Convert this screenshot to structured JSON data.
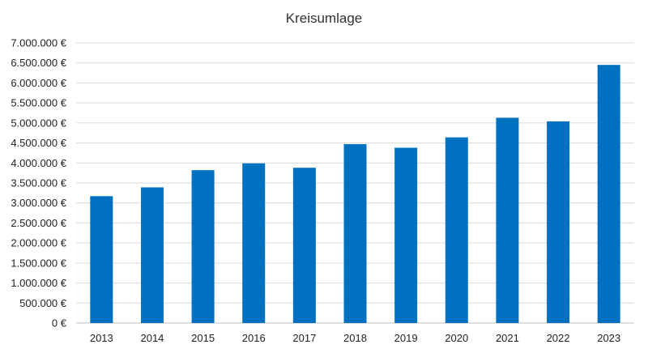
{
  "chart_data": {
    "type": "bar",
    "title": "Kreisumlage",
    "xlabel": "",
    "ylabel": "",
    "categories": [
      "2013",
      "2014",
      "2015",
      "2016",
      "2017",
      "2018",
      "2019",
      "2020",
      "2021",
      "2022",
      "2023"
    ],
    "values": [
      3170000,
      3390000,
      3820000,
      3990000,
      3880000,
      4470000,
      4380000,
      4640000,
      5130000,
      5040000,
      6450000
    ],
    "ylim": [
      0,
      7000000
    ],
    "ytick_step": 500000,
    "ytick_labels": [
      "0 €",
      "500.000 €",
      "1.000.000 €",
      "1.500.000 €",
      "2.000.000 €",
      "2.500.000 €",
      "3.000.000 €",
      "3.500.000 €",
      "4.000.000 €",
      "4.500.000 €",
      "5.000.000 €",
      "5.500.000 €",
      "6.000.000 €",
      "6.500.000 €",
      "7.000.000 €"
    ],
    "grid": true,
    "legend": "none",
    "bar_color": "#0070c0"
  }
}
